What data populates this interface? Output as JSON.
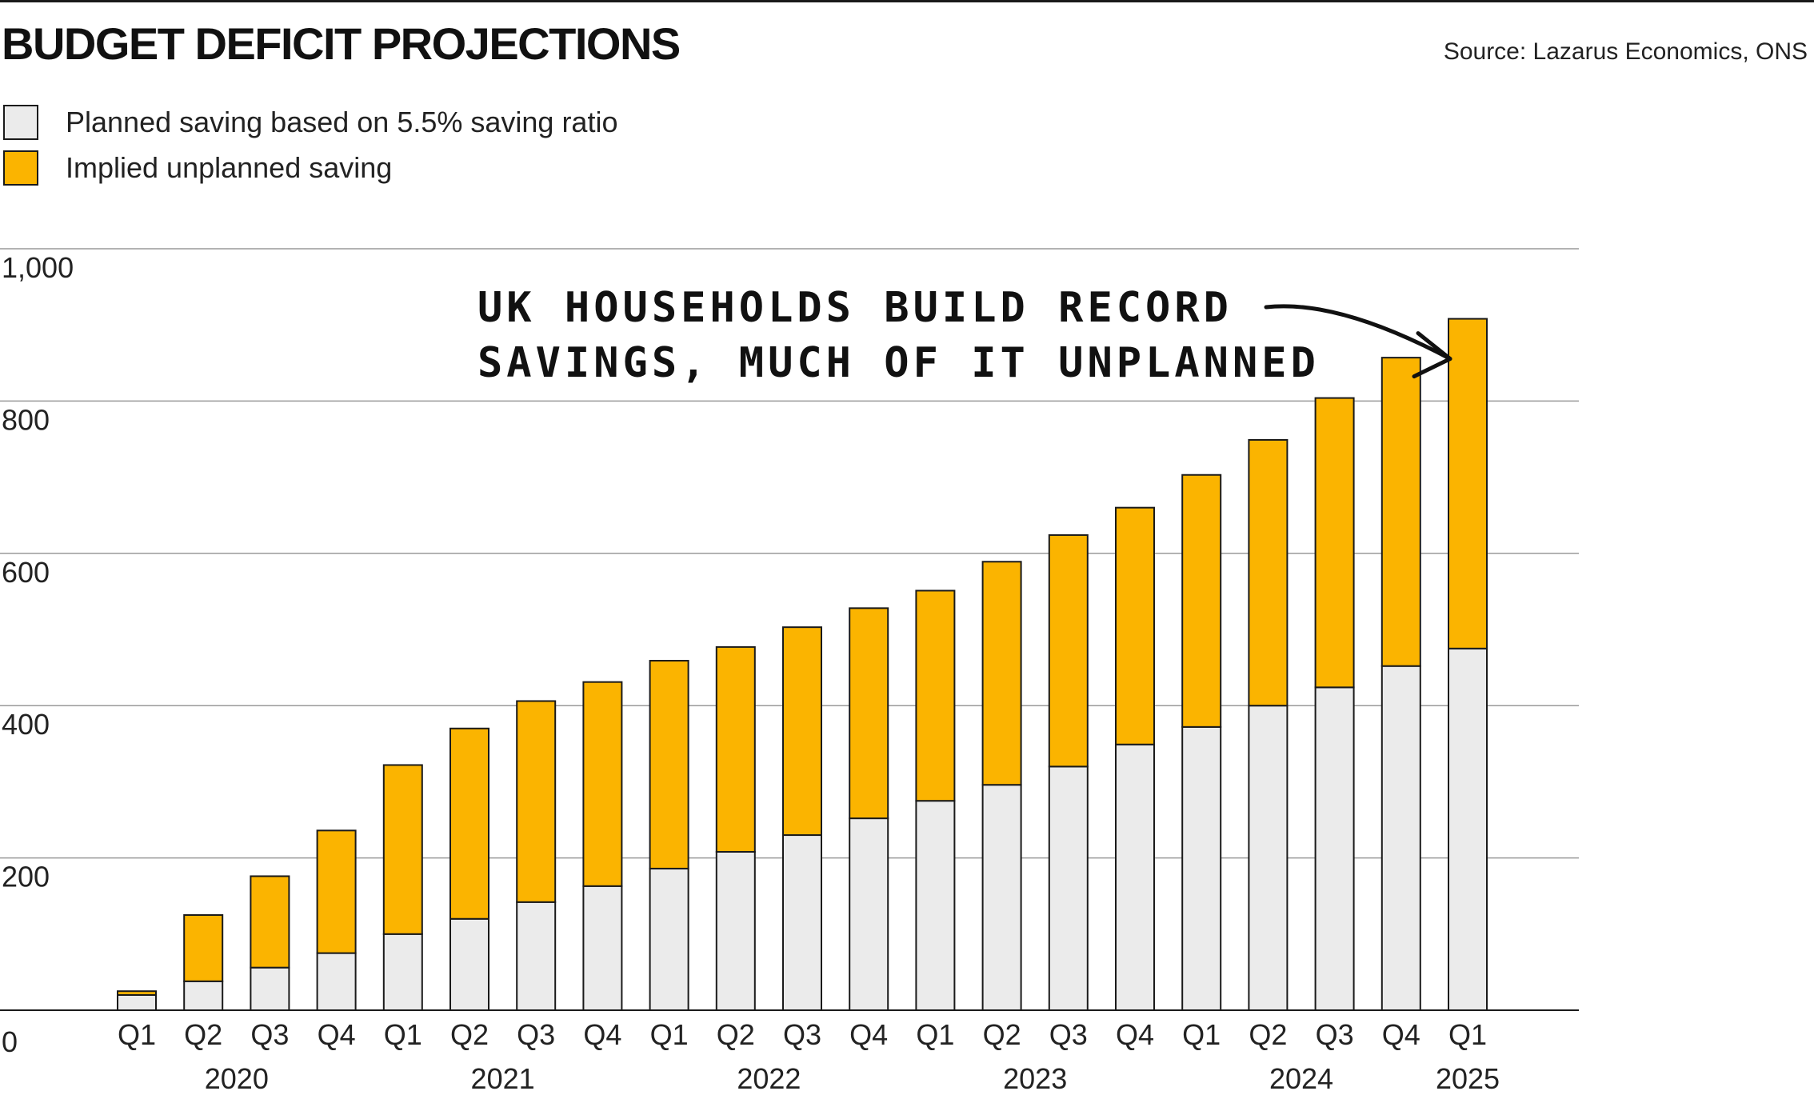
{
  "header": {
    "title": "BUDGET DEFICIT PROJECTIONS",
    "source": "Source: Lazarus Economics, ONS"
  },
  "colors": {
    "planned": "#ebebeb",
    "unplanned": "#fbb400",
    "outline": "#1a1a1a",
    "gridline": "#9a9a9a"
  },
  "chart_data": {
    "type": "bar",
    "stacked": true,
    "title": "BUDGET DEFICIT PROJECTIONS",
    "xlabel": "",
    "ylabel": "",
    "ylim": [
      0,
      1000
    ],
    "yticks": [
      0,
      200,
      400,
      600,
      800,
      1000
    ],
    "ytick_labels": [
      "0",
      "200",
      "400",
      "600",
      "800",
      "1,000"
    ],
    "grid": true,
    "legend_position": "top-left",
    "categories": [
      "Q1",
      "Q2",
      "Q3",
      "Q4",
      "Q1",
      "Q2",
      "Q3",
      "Q4",
      "Q1",
      "Q2",
      "Q3",
      "Q4",
      "Q1",
      "Q2",
      "Q3",
      "Q4",
      "Q1",
      "Q2",
      "Q3",
      "Q4",
      "Q1"
    ],
    "year_groups": [
      {
        "label": "2020",
        "start": 0,
        "end": 3
      },
      {
        "label": "2021",
        "start": 4,
        "end": 7
      },
      {
        "label": "2022",
        "start": 8,
        "end": 11
      },
      {
        "label": "2023",
        "start": 12,
        "end": 15
      },
      {
        "label": "2024",
        "start": 16,
        "end": 19
      },
      {
        "label": "2025",
        "start": 20,
        "end": 20
      }
    ],
    "series": [
      {
        "name": "Planned saving based on 5.5% saving ratio",
        "color": "#ebebeb",
        "values": [
          20,
          38,
          56,
          75,
          100,
          120,
          142,
          163,
          186,
          208,
          230,
          252,
          275,
          296,
          320,
          349,
          372,
          400,
          424,
          452,
          475
        ]
      },
      {
        "name": "Implied unplanned saving",
        "color": "#fbb400",
        "values": [
          5,
          87,
          120,
          161,
          222,
          250,
          264,
          268,
          273,
          269,
          273,
          276,
          276,
          293,
          304,
          311,
          331,
          349,
          380,
          405,
          433
        ]
      }
    ],
    "annotation": {
      "lines": [
        "UK HOUSEHOLDS BUILD RECORD",
        "SAVINGS, MUCH OF IT UNPLANNED"
      ],
      "target_index": 20
    }
  }
}
